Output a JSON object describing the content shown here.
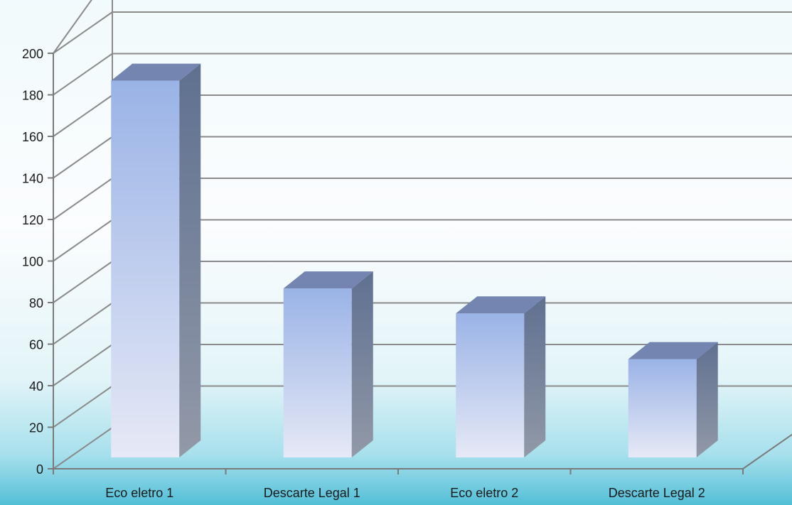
{
  "chart_data": {
    "type": "bar",
    "title": "",
    "xlabel": "",
    "ylabel": "",
    "categories": [
      "Eco eletro 1",
      "Descarte Legal 1",
      "Eco eletro 2",
      "Descarte Legal 2"
    ],
    "values": [
      182,
      82,
      70,
      48
    ],
    "ylim": [
      0,
      200
    ],
    "yticks": [
      "0",
      "20",
      "40",
      "60",
      "80",
      "100",
      "120",
      "140",
      "160",
      "180",
      "200"
    ],
    "grid": true,
    "legend": "none",
    "colors": {
      "bar_top": "#9ab3e6",
      "bar_bottom": "#e6e9f6",
      "bar_side_top": "#5f7090",
      "bar_side_bottom": "#9299a8",
      "bar_cap": "#7385b0",
      "bg_sky": "#eef8fb",
      "bg_sea": "#5ec3d9"
    }
  }
}
